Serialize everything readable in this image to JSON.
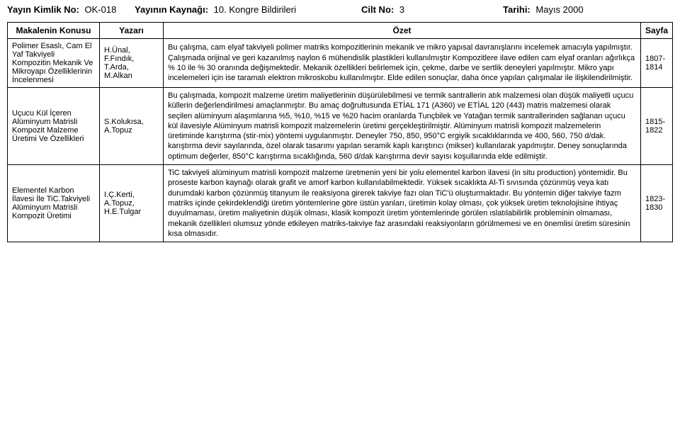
{
  "header": {
    "pub_id_label": "Yayın Kimlik No:",
    "pub_id_value": "OK-018",
    "source_label": "Yayının Kaynağı:",
    "source_value": "10. Kongre Bildirileri",
    "volume_label": "Cilt No:",
    "volume_value": "3",
    "date_label": "Tarihi:",
    "date_value": "Mayıs 2000"
  },
  "columns": {
    "topic": "Makalenin Konusu",
    "author": "Yazarı",
    "abstract": "Özet",
    "page": "Sayfa"
  },
  "rows": [
    {
      "topic": "Polimer Esaslı, Cam El Yaf Takviyeli Kompozitin Mekanik Ve Mikroyapı Özelliklerinin İncelenmesi",
      "author": "H.Ünal, F.Fındık, T.Arda, M.Alkan",
      "abstract": "Bu çalışma, cam elyaf takviyeli polimer matriks kompozitlerinin mekanik ve mikro yapısal davranışlarını incelemek amacıyla yapılmıştır. Çalışmada orijinal ve geri kazanılmış naylon 6 mühendislik plastikleri kullanılmıştır Kompozitlere ilave edilen cam elyaf oranları ağırlıkça % 10 ile % 30 oranında değişmektedir. Mekanik özellikleri belirlemek için, çekme, darbe ve sertlik deneyleri yapılmıştır. Mikro yapı incelemeleri için ise taramalı elektron mikroskobu kullanılmıştır. Elde edilen sonuçlar, daha önce yapılan çalışmalar ile ilişkilendirilmiştir.",
      "page": "1807-1814"
    },
    {
      "topic": "Uçucu Kül İçeren Alüminyum Matrisli Kompozit Malzeme Üretimi Ve Özellikleri",
      "author": "S.Kolukısa, A.Topuz",
      "abstract": "Bu çalışmada, kompozit malzeme üretim maliyetlerinin düşürülebilmesi ve termik santrallerin atık malzemesi olan düşük maliyetli uçucu küllerin değerlendirilmesi amaçlanmıştır. Bu amaç doğrultusunda ETİAL 171 (A360) ve ETİAL 120 (443) matris malzemesi olarak seçilen alüminyum alaşımlarına %5, %10, %15 ve %20 hacim oranlarda Tunçbilek ve Yatağan termik santrallerinden sağlanan uçucu kül ilavesiyle Alüminyum matrisli kompozit malzemelerin üretimi gerçekleştirilmiştir. Alüminyum matrisli kompozit malzemelerin üretiminde karıştırma (stir-mix) yöntemi uygulanmıştır. Deneyler 750, 850, 950°C ergiyik sıcaklıklarında ve 400, 560, 750 d/dak. karıştırma devir sayılarında, özel olarak tasarımı yapılan seramik kaplı karıştırıcı (mikser) kullanılarak yapılmıştır. Deney sonuçlarında optimum değerler, 850°C karıştırma sıcaklığında, 560 d/dak karıştırma devir sayısı koşullarında elde edilmiştir.",
      "page": "1815-1822"
    },
    {
      "topic": "Elementel Karbon İlavesi İle TiC.Takviyeli Alüminyum Matrisli Kompozit Üretimi",
      "author": "I.Ç.Kerti, A.Topuz, H.E.Tulgar",
      "abstract": "TiC takviyeli alüminyum matrisli kompozit malzeme üretmenin yeni bir yolu elementel karbon ilavesi (in situ production) yöntemidir. Bu proseste karbon kaynağı olarak grafit ve amorf karbon kullanılabilmektedir. Yüksek sıcaklıkta Al-Ti sıvısında çözünmüş veya katı durumdaki karbon çözünmüş titanyum ile reaksiyona girerek takviye fazı olan TiC'ü oluşturmaktadır. Bu yöntemin diğer takviye fazm matriks içinde çekirdeklendiği üretim yöntemlerine göre üstün yanları, üretimin kolay olması, çok yüksek üretim teknolojisine ihtiyaç duyulmaması, üretim maliyetinin düşük olması, klasik kompozit üretim yöntemlerinde görülen ıslatılabilirlik probleminin olmaması, mekanik özellikleri olumsuz yönde etkileyen matriks-takviye faz arasındaki reaksiyonların görülmemesi ve en önemlisi üretim süresinin kısa olmasıdır.",
      "page": "1823-1830"
    }
  ]
}
